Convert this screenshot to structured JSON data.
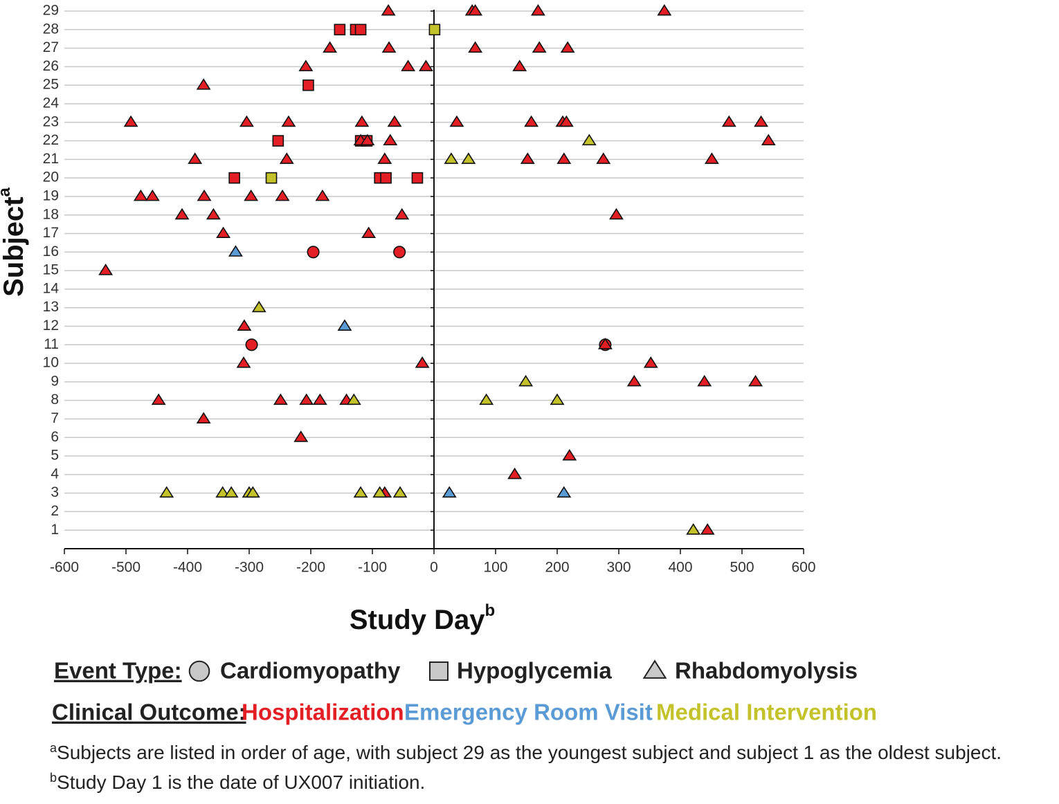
{
  "chart_data": {
    "type": "scatter",
    "ylabel": "Subject",
    "ylabel_sup": "a",
    "xlabel": "Study Day",
    "xlabel_sup": "b",
    "xlim": [
      -600,
      600
    ],
    "xticks": [
      -600,
      -500,
      -400,
      -300,
      -200,
      -100,
      0,
      100,
      200,
      300,
      400,
      500,
      600
    ],
    "ylim": [
      0,
      29
    ],
    "yticks": [
      1,
      2,
      3,
      4,
      5,
      6,
      7,
      8,
      9,
      10,
      11,
      12,
      13,
      14,
      15,
      16,
      17,
      18,
      19,
      20,
      21,
      22,
      23,
      24,
      25,
      26,
      27,
      28,
      29
    ],
    "grid": true,
    "event_type_title": "Event Type:",
    "outcome_title": "Clinical Outcome:",
    "outcomes": [
      {
        "name": "Hospitalization",
        "color": "#e31e24"
      },
      {
        "name": "Emergency Room Visit",
        "color": "#5b9bd5"
      },
      {
        "name": "Medical Intervention",
        "color": "#c4c22a"
      }
    ],
    "event_types": [
      {
        "name": "Cardiomyopathy",
        "shape": "circle",
        "points": [
          {
            "x": [
              -196,
              -56,
              -296,
              278
            ],
            "y": [
              16,
              16,
              11,
              11
            ]
          },
          {
            "x": [],
            "y": []
          },
          {
            "x": [],
            "y": []
          }
        ]
      },
      {
        "name": "Hypoglycemia",
        "shape": "square",
        "points": [
          {
            "x": [
              -153,
              -127,
              -119,
              -204,
              -253,
              -119,
              -109,
              -324,
              -88,
              -78,
              -27
            ],
            "y": [
              28,
              28,
              28,
              25,
              22,
              22,
              22,
              20,
              20,
              20,
              20
            ]
          },
          {
            "x": [],
            "y": []
          },
          {
            "x": [
              1,
              -264
            ],
            "y": [
              28,
              20
            ]
          }
        ]
      },
      {
        "name": "Rhabdomyolysis",
        "shape": "triangle",
        "points": [
          {
            "x": [
              -74,
              62,
              67,
              169,
              374,
              -169,
              -73,
              67,
              171,
              217,
              -208,
              -42,
              -13,
              139,
              -374,
              -492,
              -304,
              -236,
              -117,
              -64,
              37,
              158,
              209,
              215,
              479,
              531,
              -119,
              -108,
              -71,
              543,
              -388,
              -239,
              -80,
              152,
              211,
              275,
              451,
              -476,
              -457,
              -373,
              -297,
              -246,
              -181,
              -409,
              -358,
              -52,
              296,
              -342,
              -106,
              -533,
              -308,
              278,
              -309,
              -19,
              352,
              325,
              439,
              522,
              -447,
              -249,
              -207,
              -185,
              -142,
              -374,
              -216,
              220,
              131,
              -80,
              444
            ],
            "y": [
              29,
              29,
              29,
              29,
              29,
              27,
              27,
              27,
              27,
              27,
              26,
              26,
              26,
              26,
              25,
              23,
              23,
              23,
              23,
              23,
              23,
              23,
              23,
              23,
              23,
              23,
              22,
              22,
              22,
              22,
              21,
              21,
              21,
              21,
              21,
              21,
              21,
              19,
              19,
              19,
              19,
              19,
              19,
              18,
              18,
              18,
              18,
              17,
              17,
              15,
              12,
              11,
              10,
              10,
              10,
              9,
              9,
              9,
              8,
              8,
              8,
              8,
              8,
              7,
              6,
              5,
              4,
              3,
              1
            ]
          },
          {
            "x": [
              -322,
              -145,
              25,
              211
            ],
            "y": [
              16,
              12,
              3,
              3
            ]
          },
          {
            "x": [
              252,
              28,
              56,
              -284,
              149,
              -130,
              85,
              200,
              -434,
              -343,
              -329,
              -300,
              -294,
              -119,
              -88,
              -55,
              421
            ],
            "y": [
              22,
              21,
              21,
              13,
              9,
              8,
              8,
              8,
              3,
              3,
              3,
              3,
              3,
              3,
              3,
              3,
              1
            ]
          }
        ]
      }
    ],
    "footnotes": [
      {
        "mark": "a",
        "text": "Subjects are listed in order of age, with subject 29 as the youngest subject and subject 1 as the oldest subject."
      },
      {
        "mark": "b",
        "text": "Study Day 1 is the date of UX007 initiation."
      }
    ]
  }
}
